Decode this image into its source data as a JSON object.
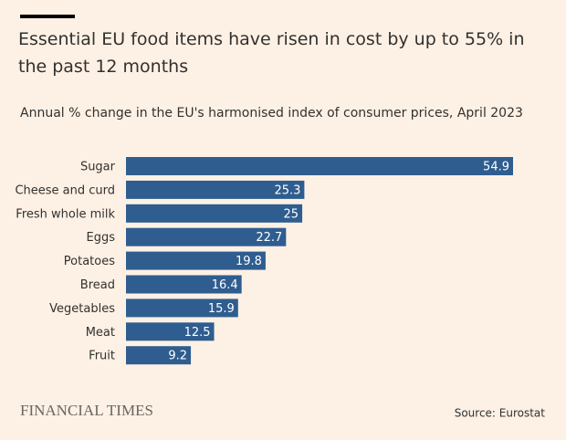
{
  "chart_data": {
    "type": "bar",
    "orientation": "horizontal",
    "title": "Essential EU food items have risen in cost by up to 55% in the past 12 months",
    "subtitle": "Annual % change in the EU's harmonised index of consumer prices, April 2023",
    "categories": [
      "Sugar",
      "Cheese and curd",
      "Fresh whole milk",
      "Eggs",
      "Potatoes",
      "Bread",
      "Vegetables",
      "Meat",
      "Fruit"
    ],
    "values": [
      54.9,
      25.3,
      25,
      22.7,
      19.8,
      16.4,
      15.9,
      12.5,
      9.2
    ],
    "color": "#2f5d8f",
    "source": "Source: Eurostat",
    "brand": "FINANCIAL TIMES"
  }
}
